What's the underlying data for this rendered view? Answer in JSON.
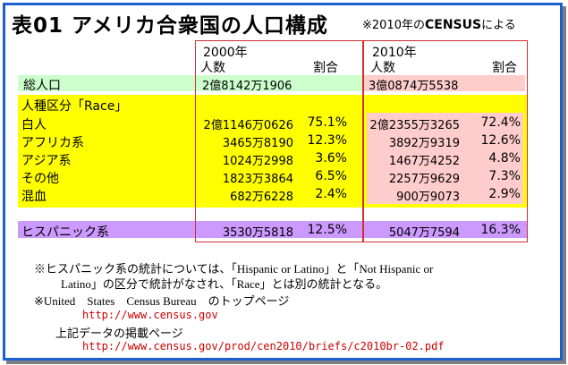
{
  "title": "表01 アメリカ合衆国の人口構成",
  "note_prefix": "※2010年の",
  "note_bold": "CENSUS",
  "note_suffix": "による",
  "header_2000": {
    "year": "2000年",
    "count": "人数",
    "ratio": "割合"
  },
  "header_2010": {
    "year": "2010年",
    "count": "人数",
    "ratio": "割合"
  },
  "total": {
    "label": "総人口",
    "v2000": "2億8142万1906",
    "v2010": "3億0874万5538"
  },
  "race_header": "人種区分「Race」",
  "rows": [
    {
      "label": "白人",
      "c2000": "2億1146万0626",
      "r2000": "75.1%",
      "c2010": "2億2355万3265",
      "r2010": "72.4%"
    },
    {
      "label": "アフリカ系",
      "c2000": "3465万8190",
      "r2000": "12.3%",
      "c2010": "3892万9319",
      "r2010": "12.6%"
    },
    {
      "label": "アジア系",
      "c2000": "1024万2998",
      "r2000": "3.6%",
      "c2010": "1467万4252",
      "r2010": "4.8%"
    },
    {
      "label": "その他",
      "c2000": "1823万3864",
      "r2000": "6.5%",
      "c2010": "2257万9629",
      "r2010": "7.3%"
    },
    {
      "label": "混血",
      "c2000": "682万6228",
      "r2000": "2.4%",
      "c2010": "900万9073",
      "r2010": "2.9%"
    }
  ],
  "hispanic": {
    "label": "ヒスパニック系",
    "c2000": "3530万5818",
    "r2000": "12.5%",
    "c2010": "5047万7594",
    "r2010": "16.3%"
  },
  "footnotes": {
    "line1": "※ヒスパニック系の統計については、「Hispanic or Latino」と「Not Hispanic or",
    "line2": "Latino」の区分で統計がなされ、「Race」とは別の統計となる。",
    "line3": "※United　States　Census Bureau　のトップページ",
    "url1": "http://www.census.gov",
    "line4": "上記データの掲載ページ",
    "url2": "http://www.census.gov/prod/cen2010/briefs/c2010br-02.pdf"
  },
  "colors": {
    "border": "#1e5fd0",
    "total_2000": "#ccffcc",
    "total_2010": "#ffcccc",
    "race": "#ffff00",
    "race_2010": "#ffcccc",
    "hispanic": "#cc99ff",
    "box": "#d03030",
    "url": "#cc0000"
  }
}
